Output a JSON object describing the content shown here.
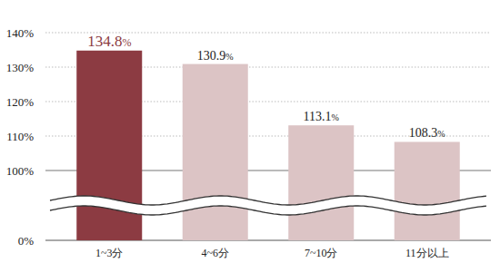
{
  "chart_data": {
    "type": "bar",
    "categories": [
      "1~3分",
      "4~6分",
      "7~10分",
      "11分以上"
    ],
    "values": [
      134.8,
      130.9,
      113.1,
      108.3
    ],
    "value_labels": [
      "134.8%",
      "130.9%",
      "113.1%",
      "108.3%"
    ],
    "colors": [
      "#8c3b42",
      "#dcc4c5",
      "#dcc4c5",
      "#dcc4c5"
    ],
    "data_labels": true,
    "ylim": [
      0,
      140
    ],
    "yticks": [
      {
        "value": 0,
        "label": "0%"
      },
      {
        "value": 100,
        "label": "100%"
      },
      {
        "value": 110,
        "label": "110%"
      },
      {
        "value": 120,
        "label": "120%"
      },
      {
        "value": 130,
        "label": "130%"
      },
      {
        "value": 140,
        "label": "140%"
      }
    ],
    "grid": true
  }
}
